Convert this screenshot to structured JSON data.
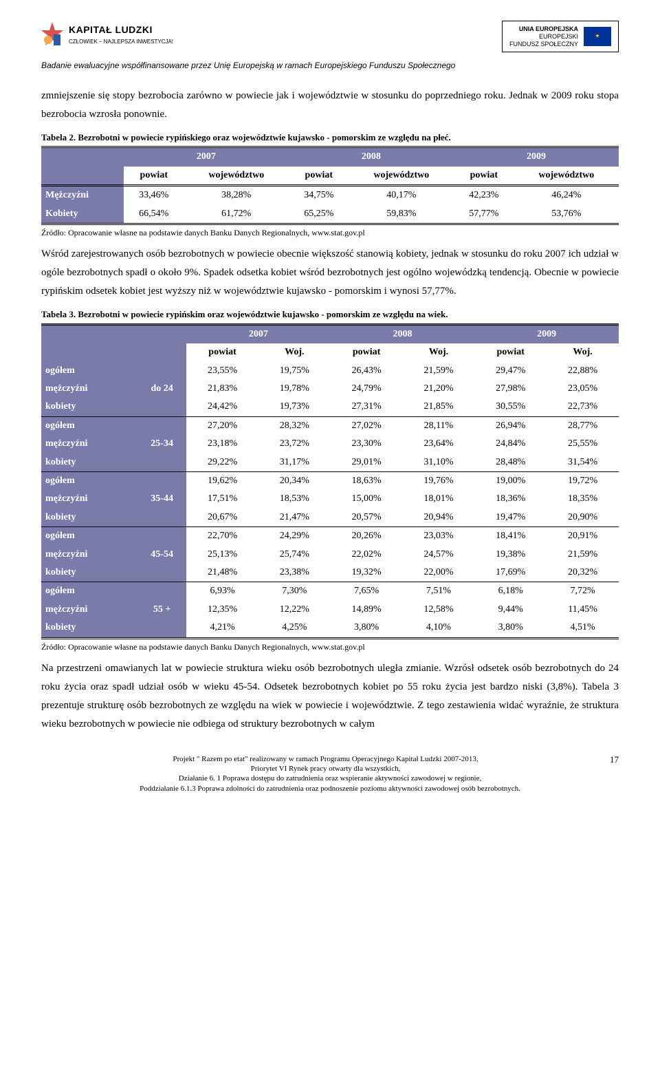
{
  "header": {
    "left_logo_main": "KAPITAŁ LUDZKI",
    "left_logo_sub": "CZŁOWIEK – NAJLEPSZA INWESTYCJA!",
    "right_logo_line1": "UNIA EUROPEJSKA",
    "right_logo_line2": "EUROPEJSKI",
    "right_logo_line3": "FUNDUSZ SPOŁECZNY",
    "funding_note": "Badanie ewaluacyjne współfinansowane przez Unię Europejską w ramach Europejskiego Funduszu Społecznego"
  },
  "para1": "zmniejszenie się stopy bezrobocia zarówno w powiecie jak i województwie w stosunku do poprzedniego roku. Jednak w 2009 roku stopa bezrobocia wzrosła ponownie.",
  "table2": {
    "caption": "Tabela 2. Bezrobotni w powiecie rypińskiego oraz województwie kujawsko - pomorskim ze względu na płeć.",
    "years": [
      "2007",
      "2008",
      "2009"
    ],
    "subheaders": [
      "powiat",
      "województwo",
      "powiat",
      "województwo",
      "powiat",
      "województwo"
    ],
    "rows": [
      {
        "label": "Mężczyźni",
        "cells": [
          "33,46%",
          "38,28%",
          "34,75%",
          "40,17%",
          "42,23%",
          "46,24%"
        ]
      },
      {
        "label": "Kobiety",
        "cells": [
          "66,54%",
          "61,72%",
          "65,25%",
          "59,83%",
          "57,77%",
          "53,76%"
        ]
      }
    ],
    "source": "Źródło: Opracowanie własne na podstawie danych Banku Danych Regionalnych, www.stat.gov.pl"
  },
  "para2": "Wśród zarejestrowanych osób bezrobotnych w powiecie obecnie większość stanowią kobiety, jednak w stosunku do roku 2007 ich udział w ogóle bezrobotnych spadł o około 9%. Spadek odsetka kobiet wśród bezrobotnych jest ogólno wojewódzką tendencją. Obecnie w powiecie rypińskim odsetek kobiet jest wyższy niż w województwie kujawsko - pomorskim i wynosi 57,77%.",
  "table3": {
    "caption": "Tabela 3. Bezrobotni w powiecie rypińskim oraz województwie kujawsko - pomorskim ze względu na wiek.",
    "years": [
      "2007",
      "2008",
      "2009"
    ],
    "subheaders": [
      "powiat",
      "Woj.",
      "powiat",
      "Woj.",
      "powiat",
      "Woj."
    ],
    "groups": [
      {
        "age": "do 24",
        "rows": [
          {
            "label": "ogółem",
            "cells": [
              "23,55%",
              "19,75%",
              "26,43%",
              "21,59%",
              "29,47%",
              "22,88%"
            ]
          },
          {
            "label": "mężczyźni",
            "cells": [
              "21,83%",
              "19,78%",
              "24,79%",
              "21,20%",
              "27,98%",
              "23,05%"
            ]
          },
          {
            "label": "kobiety",
            "cells": [
              "24,42%",
              "19,73%",
              "27,31%",
              "21,85%",
              "30,55%",
              "22,73%"
            ]
          }
        ]
      },
      {
        "age": "25-34",
        "rows": [
          {
            "label": "ogółem",
            "cells": [
              "27,20%",
              "28,32%",
              "27,02%",
              "28,11%",
              "26,94%",
              "28,77%"
            ]
          },
          {
            "label": "mężczyźni",
            "cells": [
              "23,18%",
              "23,72%",
              "23,30%",
              "23,64%",
              "24,84%",
              "25,55%"
            ]
          },
          {
            "label": "kobiety",
            "cells": [
              "29,22%",
              "31,17%",
              "29,01%",
              "31,10%",
              "28,48%",
              "31,54%"
            ]
          }
        ]
      },
      {
        "age": "35-44",
        "rows": [
          {
            "label": "ogółem",
            "cells": [
              "19,62%",
              "20,34%",
              "18,63%",
              "19,76%",
              "19,00%",
              "19,72%"
            ]
          },
          {
            "label": "mężczyźni",
            "cells": [
              "17,51%",
              "18,53%",
              "15,00%",
              "18,01%",
              "18,36%",
              "18,35%"
            ]
          },
          {
            "label": "kobiety",
            "cells": [
              "20,67%",
              "21,47%",
              "20,57%",
              "20,94%",
              "19,47%",
              "20,90%"
            ]
          }
        ]
      },
      {
        "age": "45-54",
        "rows": [
          {
            "label": "ogółem",
            "cells": [
              "22,70%",
              "24,29%",
              "20,26%",
              "23,03%",
              "18,41%",
              "20,91%"
            ]
          },
          {
            "label": "mężczyźni",
            "cells": [
              "25,13%",
              "25,74%",
              "22,02%",
              "24,57%",
              "19,38%",
              "21,59%"
            ]
          },
          {
            "label": "kobiety",
            "cells": [
              "21,48%",
              "23,38%",
              "19,32%",
              "22,00%",
              "17,69%",
              "20,32%"
            ]
          }
        ]
      },
      {
        "age": "55 +",
        "rows": [
          {
            "label": "ogółem",
            "cells": [
              "6,93%",
              "7,30%",
              "7,65%",
              "7,51%",
              "6,18%",
              "7,72%"
            ]
          },
          {
            "label": "mężczyźni",
            "cells": [
              "12,35%",
              "12,22%",
              "14,89%",
              "12,58%",
              "9,44%",
              "11,45%"
            ]
          },
          {
            "label": "kobiety",
            "cells": [
              "4,21%",
              "4,25%",
              "3,80%",
              "4,10%",
              "3,80%",
              "4,51%"
            ]
          }
        ]
      }
    ],
    "source": "Źródło: Opracowanie własne na podstawie danych Banku Danych Regionalnych, www.stat.gov.pl"
  },
  "para3": "Na przestrzeni omawianych lat w powiecie struktura wieku osób bezrobotnych uległa zmianie. Wzrósł odsetek osób bezrobotnych do 24 roku życia oraz spadł udział osób w wieku 45-54. Odsetek bezrobotnych kobiet po 55 roku życia jest bardzo niski (3,8%). Tabela 3 prezentuje strukturę osób bezrobotnych ze względu na wiek w powiecie i województwie. Z tego zestawienia widać wyraźnie, że struktura wieku bezrobotnych w powiecie nie odbiega od struktury bezrobotnych w całym",
  "footer": {
    "line1": "Projekt \" Razem po etat\" realizowany w ramach Programu Operacyjnego Kapitał Ludzki 2007-2013,",
    "line2": "Priorytet VI Rynek pracy otwarty dla wszystkich,",
    "line3": "Działanie 6. 1 Poprawa dostępu do zatrudnienia oraz wspieranie aktywności zawodowej w regionie,",
    "line4": "Poddziałanie 6.1.3 Poprawa zdolności do zatrudnienia oraz podnoszenie poziomu aktywności zawodowej osób bezrobotnych.",
    "page": "17"
  },
  "style": {
    "header_bg": "#7a7aab",
    "header_fg": "#ffffff",
    "body_font": "Times New Roman",
    "body_size_pt": 12,
    "caption_size_pt": 10,
    "eu_blue": "#003399",
    "eu_gold": "#ffcc00"
  }
}
